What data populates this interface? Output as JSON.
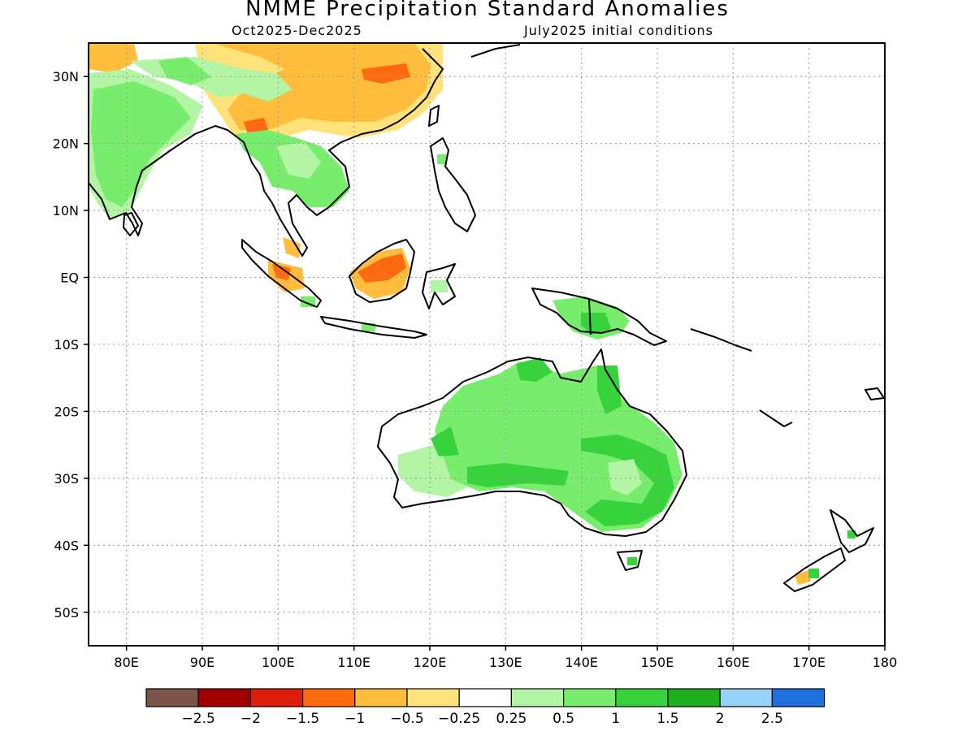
{
  "header": {
    "title": "NMME Precipitation Standard Anomalies",
    "period": "Oct2025-Dec2025",
    "init": "July2025 initial conditions"
  },
  "axes": {
    "lat_labels": [
      {
        "lat": 30,
        "text": "30N"
      },
      {
        "lat": 20,
        "text": "20N"
      },
      {
        "lat": 10,
        "text": "10N"
      },
      {
        "lat": 0,
        "text": "EQ"
      },
      {
        "lat": -10,
        "text": "10S"
      },
      {
        "lat": -20,
        "text": "20S"
      },
      {
        "lat": -30,
        "text": "30S"
      },
      {
        "lat": -40,
        "text": "40S"
      },
      {
        "lat": -50,
        "text": "50S"
      }
    ],
    "lon_labels": [
      {
        "lon": 80,
        "text": "80E"
      },
      {
        "lon": 90,
        "text": "90E"
      },
      {
        "lon": 100,
        "text": "100E"
      },
      {
        "lon": 110,
        "text": "110E"
      },
      {
        "lon": 120,
        "text": "120E"
      },
      {
        "lon": 130,
        "text": "130E"
      },
      {
        "lon": 140,
        "text": "140E"
      },
      {
        "lon": 150,
        "text": "150E"
      },
      {
        "lon": 160,
        "text": "160E"
      },
      {
        "lon": 170,
        "text": "170E"
      },
      {
        "lon": 180,
        "text": "180"
      }
    ],
    "lon_range": [
      75,
      180
    ],
    "lat_range": [
      -55,
      35
    ],
    "grid": true
  },
  "colorbar": {
    "colors": [
      "#7a5548",
      "#a00000",
      "#dd1c0c",
      "#ff6a10",
      "#ffbd3d",
      "#ffe27a",
      "#ffffff",
      "#b4f5a5",
      "#78ec6d",
      "#37d23c",
      "#1eaf1e",
      "#96d2fa",
      "#1e6edc"
    ],
    "labels": [
      "-2.5",
      "-2",
      "-1.5",
      "-1",
      "-0.5",
      "-0.25",
      "0.25",
      "0.5",
      "1",
      "1.5",
      "2",
      "2.5"
    ]
  },
  "regions": [
    {
      "name": "India",
      "color": "#78ec6d"
    },
    {
      "name": "China",
      "color": "#ffbd3d"
    },
    {
      "name": "Indochina",
      "color": "#78ec6d"
    },
    {
      "name": "Borneo",
      "color": "#ffbd3d"
    },
    {
      "name": "Australia",
      "color": "#78ec6d"
    },
    {
      "name": "New Guinea",
      "color": "#78ec6d"
    }
  ]
}
